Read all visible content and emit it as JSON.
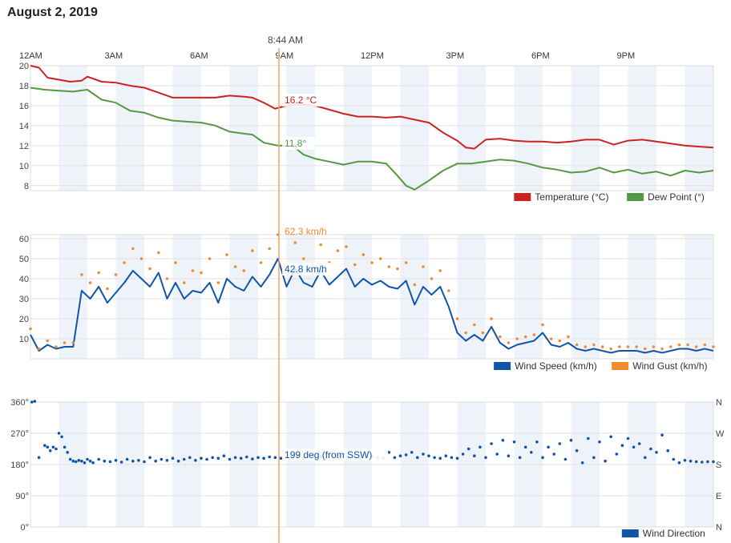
{
  "page": {
    "date_title": "August 2, 2019"
  },
  "cursor": {
    "time_label": "8:44 AM",
    "hour": 8.733,
    "color": "#f4a460",
    "temperature_label": "16.2 °C",
    "dewpoint_label": "11.8°",
    "wind_gust_label": "62.3 km/h",
    "wind_speed_label": "42.8 km/h",
    "direction_label": "199 deg (from SSW)"
  },
  "x_axis": {
    "range": [
      0,
      24
    ],
    "ticks": [
      {
        "hour": 0,
        "label": "12AM"
      },
      {
        "hour": 3,
        "label": "3AM"
      },
      {
        "hour": 6,
        "label": "6AM"
      },
      {
        "hour": 9,
        "label": "9AM"
      },
      {
        "hour": 12,
        "label": "12PM"
      },
      {
        "hour": 15,
        "label": "3PM"
      },
      {
        "hour": 18,
        "label": "6PM"
      },
      {
        "hour": 21,
        "label": "9PM"
      }
    ]
  },
  "chart_data": [
    {
      "type": "line",
      "name": "temperature-dewpoint",
      "ylim": [
        7.5,
        20
      ],
      "y_ticks": [
        8,
        10,
        12,
        14,
        16,
        18,
        20
      ],
      "legend_position": "bottom-right",
      "series": [
        {
          "name": "Temperature (°C)",
          "color": "#cc2222",
          "x": [
            0,
            0.3,
            0.6,
            1,
            1.4,
            1.8,
            2,
            2.5,
            3,
            3.5,
            4,
            4.5,
            5,
            5.5,
            6,
            6.5,
            7,
            7.5,
            7.8,
            8.2,
            8.6,
            9,
            9.5,
            10,
            10.5,
            11,
            11.5,
            12,
            12.5,
            13,
            13.5,
            14,
            14.5,
            15,
            15.3,
            15.6,
            16,
            16.5,
            17,
            17.5,
            18,
            18.5,
            19,
            19.5,
            20,
            20.5,
            21,
            21.5,
            22,
            22.5,
            23,
            23.5,
            24
          ],
          "values": [
            20,
            19.8,
            18.8,
            18.6,
            18.4,
            18.5,
            18.9,
            18.4,
            18.3,
            18.0,
            17.8,
            17.3,
            16.8,
            16.8,
            16.8,
            16.8,
            17.0,
            16.9,
            16.8,
            16.3,
            15.7,
            16.0,
            16.1,
            16.0,
            15.6,
            15.2,
            14.9,
            14.9,
            14.8,
            14.9,
            14.6,
            14.3,
            13.3,
            12.5,
            11.8,
            11.7,
            12.6,
            12.7,
            12.5,
            12.4,
            12.4,
            12.3,
            12.4,
            12.6,
            12.6,
            12.1,
            12.5,
            12.6,
            12.4,
            12.2,
            12.0,
            11.9,
            11.8
          ]
        },
        {
          "name": "Dew Point (°)",
          "color": "#559944",
          "x": [
            0,
            0.5,
            1,
            1.5,
            2,
            2.5,
            3,
            3.5,
            4,
            4.5,
            5,
            5.5,
            6,
            6.5,
            7,
            7.5,
            7.8,
            8.2,
            8.7,
            9.2,
            9.6,
            10,
            10.5,
            11,
            11.5,
            12,
            12.5,
            12.9,
            13.2,
            13.5,
            14,
            14.5,
            15,
            15.5,
            16,
            16.5,
            17,
            17.5,
            18,
            18.5,
            19,
            19.5,
            20,
            20.5,
            21,
            21.5,
            22,
            22.5,
            23,
            23.5,
            24
          ],
          "values": [
            17.8,
            17.6,
            17.5,
            17.4,
            17.6,
            16.6,
            16.3,
            15.5,
            15.3,
            14.8,
            14.5,
            14.4,
            14.3,
            14.0,
            13.4,
            13.2,
            13.1,
            12.3,
            12.0,
            12.0,
            11.1,
            10.7,
            10.4,
            10.1,
            10.4,
            10.4,
            10.2,
            9.0,
            8.0,
            7.6,
            8.5,
            9.5,
            10.2,
            10.2,
            10.4,
            10.6,
            10.5,
            10.2,
            9.8,
            9.6,
            9.3,
            9.4,
            9.8,
            9.3,
            9.6,
            9.2,
            9.4,
            9.0,
            9.5,
            9.3,
            9.5
          ]
        }
      ]
    },
    {
      "type": "line",
      "name": "wind",
      "ylim": [
        0,
        62
      ],
      "y_ticks": [
        10,
        20,
        30,
        40,
        50,
        60
      ],
      "legend_position": "bottom-right",
      "series": [
        {
          "name": "Wind Speed (km/h)",
          "color": "#1155aa",
          "x": [
            0,
            0.3,
            0.6,
            0.9,
            1.2,
            1.5,
            1.8,
            2.1,
            2.4,
            2.7,
            3,
            3.3,
            3.6,
            3.9,
            4.2,
            4.5,
            4.8,
            5.1,
            5.4,
            5.7,
            6,
            6.3,
            6.6,
            6.9,
            7.2,
            7.5,
            7.8,
            8.1,
            8.4,
            8.7,
            9,
            9.3,
            9.6,
            9.9,
            10.2,
            10.5,
            10.8,
            11.1,
            11.4,
            11.7,
            12,
            12.3,
            12.6,
            12.9,
            13.2,
            13.5,
            13.8,
            14.1,
            14.4,
            14.7,
            15,
            15.3,
            15.6,
            15.9,
            16.2,
            16.5,
            16.8,
            17.1,
            17.4,
            17.7,
            18,
            18.3,
            18.6,
            18.9,
            19.2,
            19.5,
            19.8,
            20.1,
            20.4,
            20.7,
            21,
            21.3,
            21.6,
            21.9,
            22.2,
            22.5,
            22.8,
            23.1,
            23.4,
            23.7,
            24
          ],
          "values": [
            12,
            4,
            7,
            5,
            6,
            6,
            34,
            30,
            36,
            28,
            33,
            38,
            44,
            40,
            36,
            43,
            30,
            38,
            30,
            34,
            33,
            38,
            28,
            40,
            36,
            34,
            41,
            36,
            42,
            50,
            36,
            45,
            38,
            36,
            44,
            37,
            41,
            45,
            36,
            40,
            37,
            39,
            36,
            35,
            39,
            27,
            36,
            32,
            36,
            26,
            13,
            9,
            12,
            9,
            16,
            8,
            5,
            7,
            8,
            9,
            13,
            7,
            6,
            8,
            5,
            4,
            5,
            4,
            3,
            4,
            4,
            4,
            3,
            4,
            3,
            4,
            5,
            5,
            4,
            5,
            4
          ]
        },
        {
          "name": "Wind Gust (km/h)",
          "color": "#f28a30",
          "x": [
            0,
            0.3,
            0.6,
            0.9,
            1.2,
            1.5,
            1.8,
            2.1,
            2.4,
            2.7,
            3,
            3.3,
            3.6,
            3.9,
            4.2,
            4.5,
            4.8,
            5.1,
            5.4,
            5.7,
            6,
            6.3,
            6.6,
            6.9,
            7.2,
            7.5,
            7.8,
            8.1,
            8.4,
            8.7,
            9,
            9.3,
            9.6,
            9.9,
            10.2,
            10.5,
            10.8,
            11.1,
            11.4,
            11.7,
            12,
            12.3,
            12.6,
            12.9,
            13.2,
            13.5,
            13.8,
            14.1,
            14.4,
            14.7,
            15,
            15.3,
            15.6,
            15.9,
            16.2,
            16.5,
            16.8,
            17.1,
            17.4,
            17.7,
            18,
            18.3,
            18.6,
            18.9,
            19.2,
            19.5,
            19.8,
            20.1,
            20.4,
            20.7,
            21,
            21.3,
            21.6,
            21.9,
            22.2,
            22.5,
            22.8,
            23.1,
            23.4,
            23.7,
            24
          ],
          "values": [
            15,
            5,
            9,
            6,
            8,
            8,
            42,
            38,
            43,
            35,
            42,
            48,
            55,
            50,
            45,
            53,
            40,
            48,
            38,
            44,
            43,
            50,
            38,
            52,
            46,
            44,
            54,
            48,
            55,
            62,
            46,
            58,
            50,
            47,
            57,
            48,
            54,
            56,
            47,
            52,
            48,
            50,
            46,
            45,
            48,
            37,
            46,
            40,
            44,
            34,
            20,
            13,
            17,
            13,
            20,
            11,
            8,
            10,
            11,
            12,
            17,
            10,
            9,
            11,
            7,
            6,
            7,
            6,
            5,
            6,
            6,
            6,
            5,
            6,
            5,
            6,
            7,
            7,
            6,
            7,
            6
          ]
        }
      ]
    },
    {
      "type": "scatter",
      "name": "wind-direction",
      "ylim": [
        0,
        360
      ],
      "y_ticks": [
        0,
        90,
        180,
        270,
        360
      ],
      "y_tick_labels": [
        "0°",
        "90°",
        "180°",
        "270°",
        "360°"
      ],
      "right_tick_labels": [
        "N",
        "E",
        "S",
        "W",
        "N"
      ],
      "legend_position": "bottom-right",
      "series": [
        {
          "name": "Wind Direction",
          "color": "#1155aa",
          "x": [
            0.05,
            0.15,
            0.3,
            0.5,
            0.6,
            0.7,
            0.8,
            0.9,
            1.0,
            1.1,
            1.2,
            1.3,
            1.4,
            1.5,
            1.6,
            1.7,
            1.8,
            1.9,
            2.0,
            2.1,
            2.2,
            2.4,
            2.6,
            2.8,
            3.0,
            3.2,
            3.4,
            3.6,
            3.8,
            4.0,
            4.2,
            4.4,
            4.6,
            4.8,
            5.0,
            5.2,
            5.4,
            5.6,
            5.8,
            6.0,
            6.2,
            6.4,
            6.6,
            6.8,
            7.0,
            7.2,
            7.4,
            7.6,
            7.8,
            8.0,
            8.2,
            8.4,
            8.6,
            8.8,
            9.0,
            9.2,
            9.4,
            9.6,
            9.8,
            10.0,
            10.2,
            10.4,
            10.6,
            10.8,
            11.0,
            11.2,
            11.4,
            11.6,
            11.8,
            12.0,
            12.2,
            12.4,
            12.6,
            12.8,
            13.0,
            13.2,
            13.4,
            13.6,
            13.8,
            14.0,
            14.2,
            14.4,
            14.6,
            14.8,
            15.0,
            15.2,
            15.4,
            15.6,
            15.8,
            16.0,
            16.2,
            16.4,
            16.6,
            16.8,
            17.0,
            17.2,
            17.4,
            17.6,
            17.8,
            18.0,
            18.2,
            18.4,
            18.6,
            18.8,
            19.0,
            19.2,
            19.4,
            19.6,
            19.8,
            20.0,
            20.2,
            20.4,
            20.6,
            20.8,
            21.0,
            21.2,
            21.4,
            21.6,
            21.8,
            22.0,
            22.2,
            22.4,
            22.6,
            22.8,
            23.0,
            23.2,
            23.4,
            23.6,
            23.8,
            24.0
          ],
          "values": [
            360,
            362,
            200,
            235,
            230,
            220,
            230,
            225,
            270,
            260,
            230,
            215,
            195,
            190,
            188,
            192,
            190,
            185,
            195,
            190,
            185,
            195,
            190,
            188,
            192,
            187,
            195,
            190,
            192,
            188,
            200,
            190,
            195,
            192,
            198,
            190,
            195,
            200,
            192,
            198,
            195,
            200,
            198,
            205,
            195,
            200,
            198,
            202,
            196,
            200,
            198,
            202,
            200,
            198,
            205,
            200,
            202,
            198,
            206,
            200,
            202,
            198,
            205,
            200,
            210,
            200,
            205,
            198,
            210,
            205,
            200,
            198,
            215,
            200,
            205,
            208,
            215,
            200,
            210,
            205,
            200,
            198,
            205,
            200,
            198,
            210,
            225,
            205,
            230,
            200,
            240,
            210,
            250,
            205,
            245,
            200,
            230,
            215,
            245,
            200,
            230,
            210,
            240,
            195,
            250,
            220,
            185,
            255,
            200,
            245,
            190,
            260,
            210,
            235,
            255,
            230,
            240,
            200,
            225,
            215,
            265,
            220,
            195,
            185,
            192,
            190,
            188,
            187,
            188,
            188
          ]
        }
      ]
    }
  ]
}
